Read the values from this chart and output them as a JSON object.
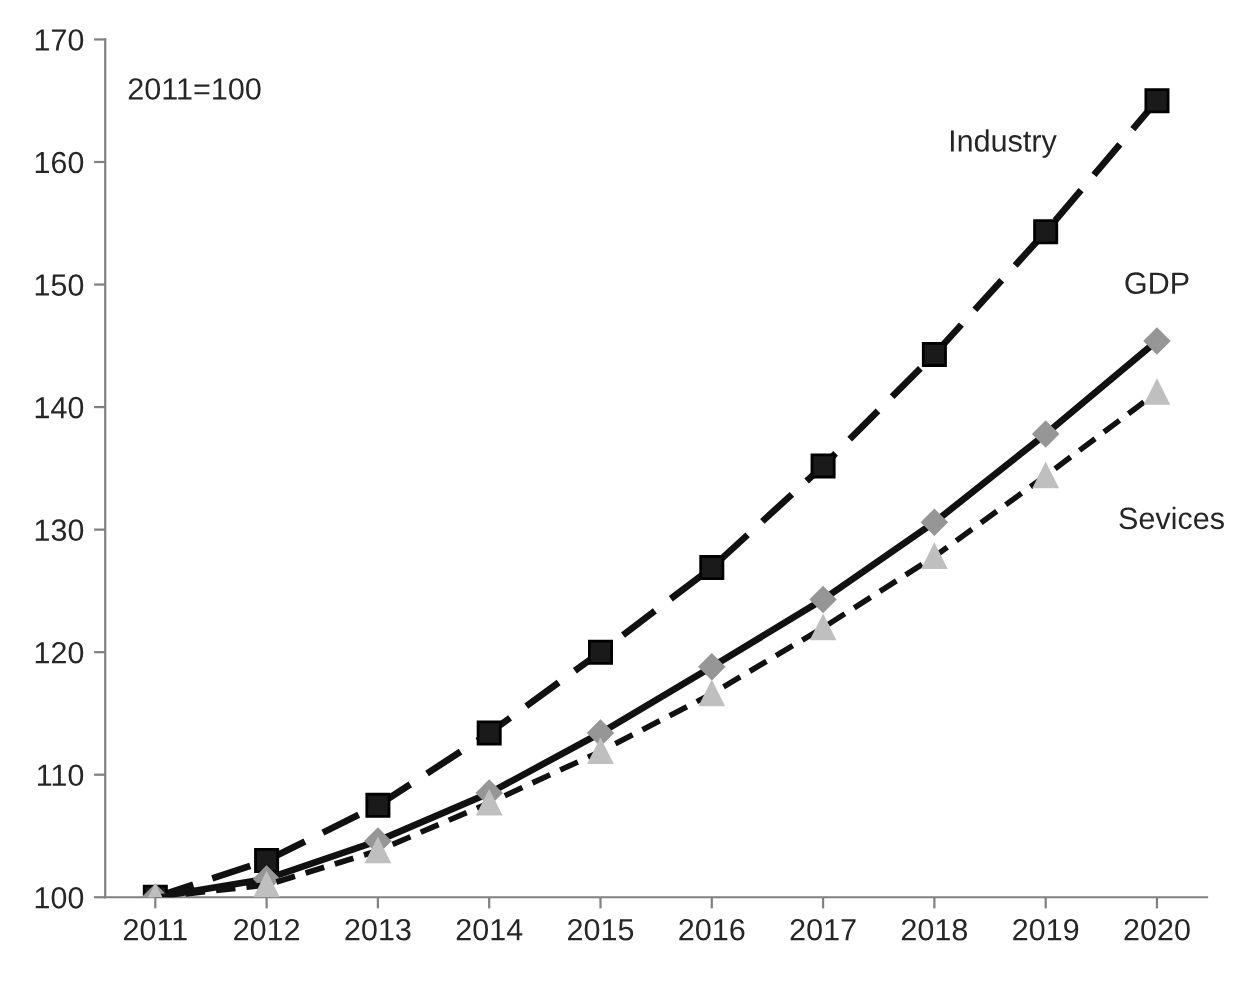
{
  "chart_data": {
    "type": "line",
    "categories": [
      "2011",
      "2012",
      "2013",
      "2014",
      "2015",
      "2016",
      "2017",
      "2018",
      "2019",
      "2020"
    ],
    "ylim": [
      100,
      170
    ],
    "yticks": [
      100,
      110,
      120,
      130,
      140,
      150,
      160,
      170
    ],
    "grid": false,
    "legend": false,
    "annotations": [
      "2011=100"
    ],
    "series": [
      {
        "name": "Industry",
        "color": "#1a1a1a",
        "marker": "square",
        "line_style": "dashed",
        "values": [
          100,
          103,
          107.5,
          113.4,
          120,
          126.9,
          135.2,
          144.3,
          154.3,
          165
        ]
      },
      {
        "name": "GDP",
        "color": "#969696",
        "marker": "diamond",
        "line_style": "solid",
        "values": [
          100,
          101.5,
          104.6,
          108.5,
          113.4,
          118.8,
          124.3,
          130.6,
          137.8,
          145.4
        ]
      },
      {
        "name": "Sevices",
        "color": "#bfbfbf",
        "marker": "triangle",
        "line_style": "dotted",
        "values": [
          100,
          101,
          103.8,
          107.7,
          111.9,
          116.6,
          122,
          127.8,
          134.4,
          141.2
        ]
      }
    ]
  }
}
